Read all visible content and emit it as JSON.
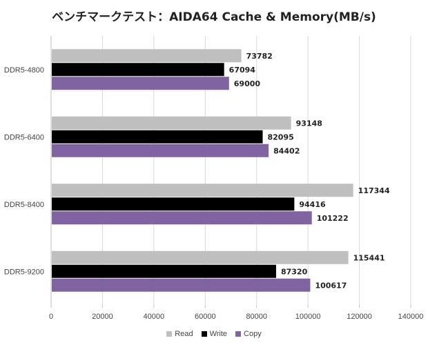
{
  "chart_data": {
    "type": "bar",
    "orientation": "horizontal",
    "title": "ベンチマークテスト：AIDA64 Cache & Memory(MB/s)",
    "categories": [
      "DDR5-4800",
      "DDR5-6400",
      "DDR5-8400",
      "DDR5-9200"
    ],
    "series": [
      {
        "name": "Read",
        "color": "#bfbfbf",
        "values": [
          73782,
          93148,
          117344,
          115441
        ]
      },
      {
        "name": "Write",
        "color": "#000000",
        "values": [
          67094,
          82095,
          94416,
          87320
        ]
      },
      {
        "name": "Copy",
        "color": "#8064a2",
        "values": [
          69000,
          84402,
          101222,
          100617
        ]
      }
    ],
    "xlim": [
      0,
      140000
    ],
    "xticks": [
      0,
      20000,
      40000,
      60000,
      80000,
      100000,
      120000,
      140000
    ],
    "grid": true,
    "legend_position": "bottom"
  }
}
